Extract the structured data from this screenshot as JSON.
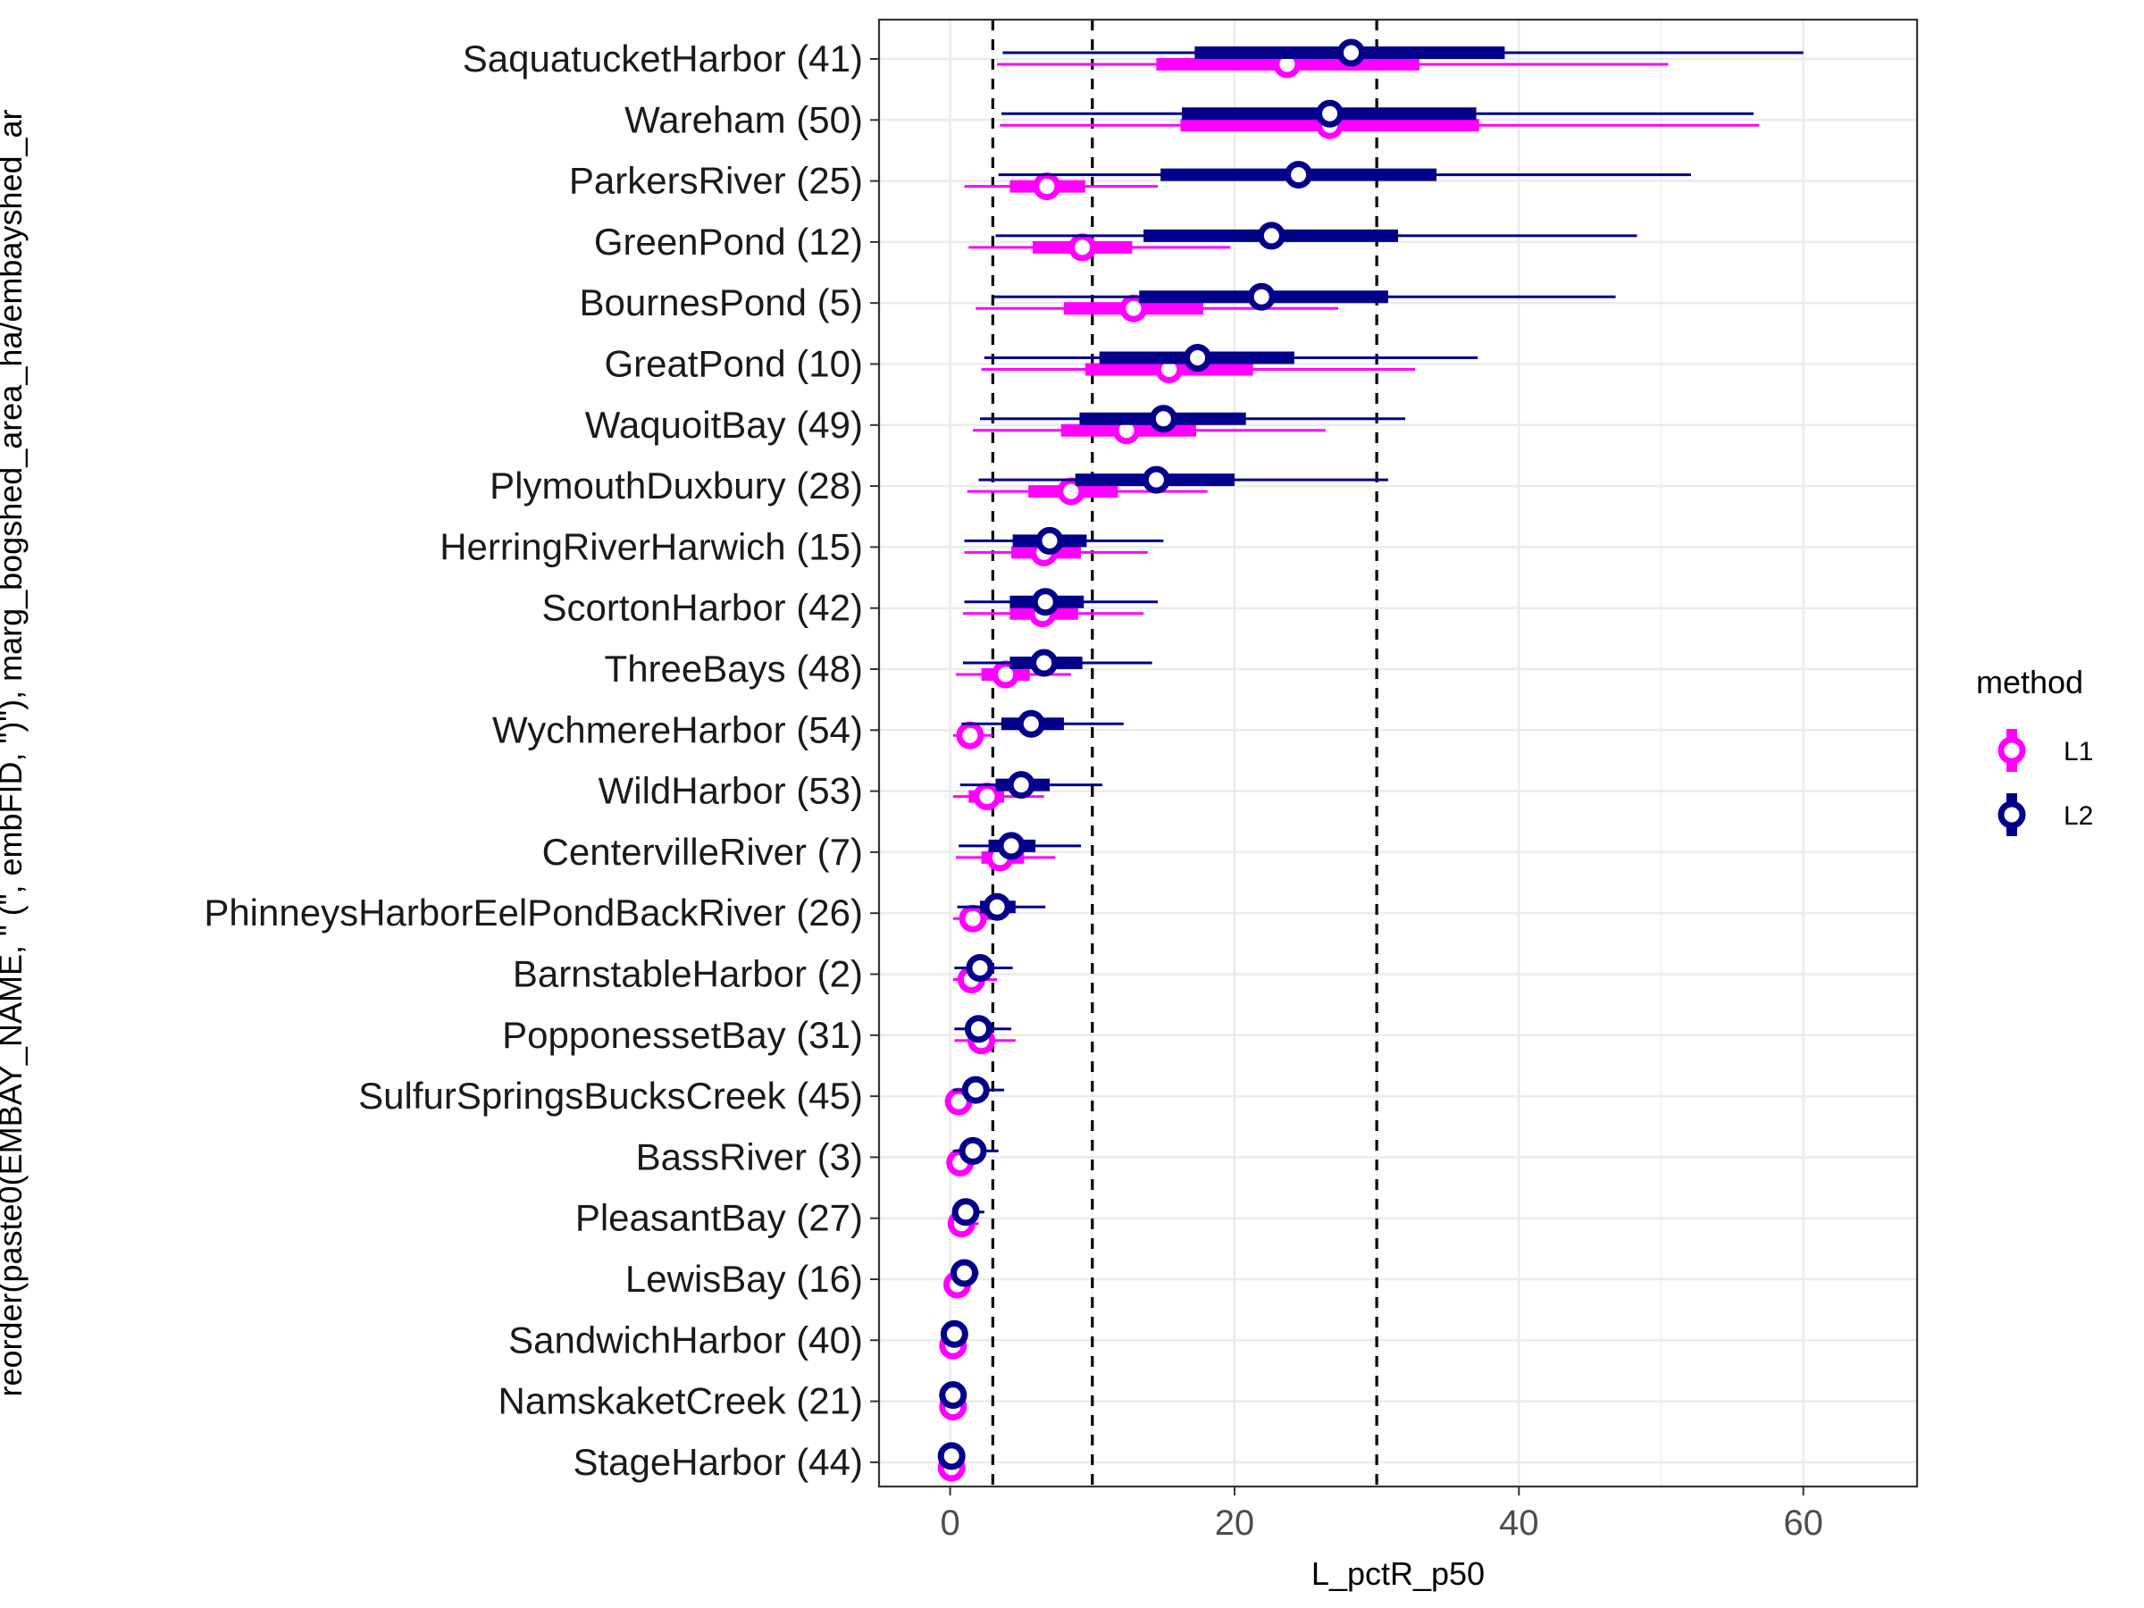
{
  "chart_data": {
    "type": "pointrange",
    "xlabel": "L_pctR_p50",
    "ylabel": "reorder(paste0(EMBAY_NAME, \" (\", embFID, \")\"), marg_bogshed_area_ha/embayshed_ar",
    "xlim": [
      -5,
      68
    ],
    "xticks": [
      0,
      20,
      40,
      60
    ],
    "grid": true,
    "reference_lines": [
      3,
      10,
      30
    ],
    "legend": {
      "title": "method",
      "position": "right",
      "entries": [
        "L1",
        "L2"
      ]
    },
    "series_colors": {
      "L1": "#ff00ff",
      "L2": "#00008b"
    },
    "categories": [
      "SaquatucketHarbor (41)",
      "Wareham (50)",
      "ParkersRiver (25)",
      "GreenPond (12)",
      "BournesPond (5)",
      "GreatPond (10)",
      "WaquoitBay (49)",
      "PlymouthDuxbury (28)",
      "HerringRiverHarwich (15)",
      "ScortonHarbor (42)",
      "ThreeBays (48)",
      "WychmereHarbor (54)",
      "WildHarbor (53)",
      "CentervilleRiver (7)",
      "PhinneysHarborEelPondBackRiver (26)",
      "BarnstableHarbor (2)",
      "PopponessetBay (31)",
      "SulfurSpringsBucksCreek (45)",
      "BassRiver (3)",
      "PleasantBay (27)",
      "LewisBay (16)",
      "SandwichHarbor (40)",
      "NamskaketCreek (21)",
      "StageHarbor (44)"
    ],
    "series": [
      {
        "name": "L1",
        "median": [
          23.7,
          26.7,
          6.8,
          9.3,
          12.9,
          15.4,
          12.4,
          8.5,
          6.6,
          6.5,
          3.9,
          1.4,
          2.6,
          3.5,
          1.6,
          1.5,
          2.2,
          0.6,
          0.7,
          0.8,
          0.5,
          0.2,
          0.2,
          0.1
        ],
        "inner": [
          [
            14.5,
            33.0
          ],
          [
            16.2,
            37.2
          ],
          [
            4.2,
            9.5
          ],
          [
            5.8,
            12.8
          ],
          [
            8.0,
            17.8
          ],
          [
            9.5,
            21.3
          ],
          [
            7.8,
            17.3
          ],
          [
            5.5,
            11.8
          ],
          [
            4.3,
            9.2
          ],
          [
            4.2,
            9.0
          ],
          [
            2.2,
            5.6
          ],
          [
            0.8,
            2.0
          ],
          [
            1.3,
            3.8
          ],
          [
            2.2,
            5.2
          ],
          [
            0.9,
            2.4
          ],
          [
            0.8,
            2.1
          ],
          [
            1.3,
            3.0
          ],
          [
            0.3,
            0.9
          ],
          [
            0.4,
            1.0
          ],
          [
            0.4,
            1.2
          ],
          [
            0.2,
            0.8
          ],
          [
            0.1,
            0.3
          ],
          [
            0.1,
            0.3
          ],
          [
            0.05,
            0.2
          ]
        ],
        "outer": [
          [
            3.3,
            50.5
          ],
          [
            3.5,
            56.9
          ],
          [
            1.0,
            14.6
          ],
          [
            1.3,
            19.7
          ],
          [
            1.8,
            27.3
          ],
          [
            2.2,
            32.7
          ],
          [
            1.6,
            26.4
          ],
          [
            1.2,
            18.1
          ],
          [
            1.0,
            13.9
          ],
          [
            0.9,
            13.6
          ],
          [
            0.4,
            8.5
          ],
          [
            0.2,
            3.0
          ],
          [
            0.2,
            6.6
          ],
          [
            0.4,
            7.4
          ],
          [
            0.2,
            3.7
          ],
          [
            0.2,
            3.3
          ],
          [
            0.3,
            4.6
          ],
          [
            0.05,
            1.5
          ],
          [
            0.05,
            1.6
          ],
          [
            0.05,
            2.0
          ],
          [
            0.02,
            1.4
          ],
          [
            0.01,
            0.5
          ],
          [
            0.01,
            0.5
          ],
          [
            0.01,
            0.3
          ]
        ]
      },
      {
        "name": "L2",
        "median": [
          28.2,
          26.7,
          24.5,
          22.6,
          21.9,
          17.4,
          15.0,
          14.5,
          7.0,
          6.7,
          6.6,
          5.7,
          5.0,
          4.3,
          3.3,
          2.1,
          2.0,
          1.8,
          1.6,
          1.1,
          1.0,
          0.3,
          0.2,
          0.1
        ],
        "inner": [
          [
            17.2,
            39.0
          ],
          [
            16.3,
            37.0
          ],
          [
            14.8,
            34.2
          ],
          [
            13.6,
            31.5
          ],
          [
            13.3,
            30.8
          ],
          [
            10.5,
            24.2
          ],
          [
            9.1,
            20.8
          ],
          [
            8.8,
            20.0
          ],
          [
            4.4,
            9.6
          ],
          [
            4.2,
            9.4
          ],
          [
            4.2,
            9.3
          ],
          [
            3.6,
            8.0
          ],
          [
            3.2,
            7.0
          ],
          [
            2.7,
            6.0
          ],
          [
            2.1,
            4.6
          ],
          [
            1.3,
            2.9
          ],
          [
            1.2,
            2.8
          ],
          [
            1.1,
            2.5
          ],
          [
            1.0,
            2.2
          ],
          [
            0.7,
            1.6
          ],
          [
            0.6,
            1.4
          ],
          [
            0.2,
            0.5
          ],
          [
            0.1,
            0.3
          ],
          [
            0.05,
            0.2
          ]
        ],
        "outer": [
          [
            3.7,
            60.0
          ],
          [
            3.6,
            56.5
          ],
          [
            3.4,
            52.1
          ],
          [
            3.2,
            48.3
          ],
          [
            3.1,
            46.8
          ],
          [
            2.4,
            37.1
          ],
          [
            2.1,
            32.0
          ],
          [
            2.0,
            30.8
          ],
          [
            1.0,
            15.0
          ],
          [
            1.0,
            14.6
          ],
          [
            0.9,
            14.2
          ],
          [
            0.8,
            12.2
          ],
          [
            0.7,
            10.7
          ],
          [
            0.6,
            9.2
          ],
          [
            0.5,
            6.7
          ],
          [
            0.3,
            4.4
          ],
          [
            0.3,
            4.3
          ],
          [
            0.2,
            3.8
          ],
          [
            0.2,
            3.4
          ],
          [
            0.2,
            2.4
          ],
          [
            0.1,
            2.0
          ],
          [
            0.02,
            0.9
          ],
          [
            0.02,
            0.6
          ],
          [
            0.01,
            0.4
          ]
        ]
      }
    ]
  }
}
